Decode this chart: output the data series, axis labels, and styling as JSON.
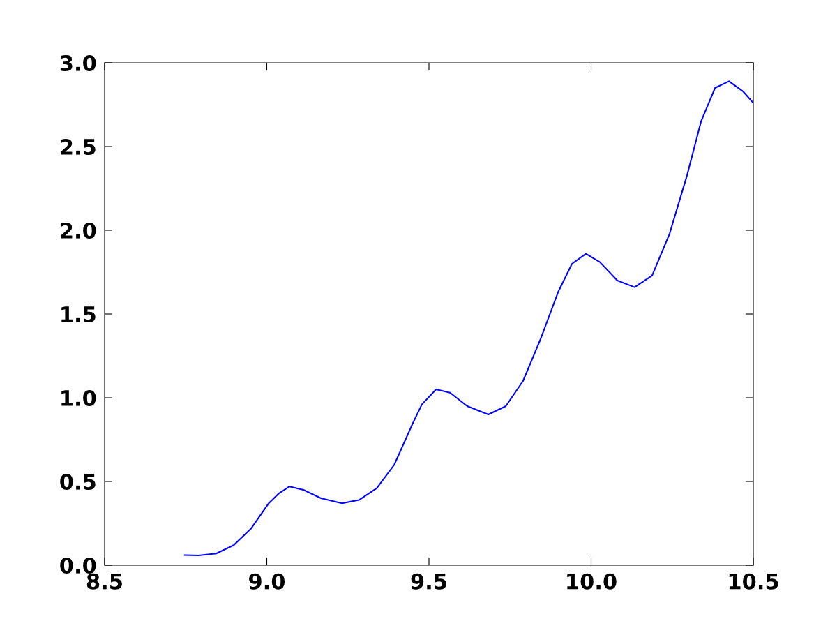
{
  "chart_data": {
    "type": "line",
    "x": [
      8.747,
      8.79,
      8.844,
      8.898,
      8.952,
      9.006,
      9.038,
      9.07,
      9.113,
      9.167,
      9.232,
      9.285,
      9.339,
      9.393,
      9.446,
      9.478,
      9.522,
      9.565,
      9.618,
      9.683,
      9.737,
      9.79,
      9.844,
      9.898,
      9.941,
      9.984,
      10.027,
      10.081,
      10.134,
      10.188,
      10.242,
      10.296,
      10.339,
      10.382,
      10.425,
      10.468,
      10.5
    ],
    "series": [
      {
        "color": "#0000ff",
        "values": [
          0.06,
          0.058,
          0.07,
          0.12,
          0.22,
          0.37,
          0.43,
          0.47,
          0.45,
          0.4,
          0.37,
          0.39,
          0.46,
          0.6,
          0.83,
          0.96,
          1.05,
          1.03,
          0.95,
          0.9,
          0.95,
          1.1,
          1.35,
          1.63,
          1.8,
          1.86,
          1.81,
          1.7,
          1.66,
          1.73,
          1.98,
          2.33,
          2.65,
          2.85,
          2.89,
          2.83,
          2.76
        ]
      }
    ],
    "xlim": [
      8.5,
      10.5
    ],
    "xticks": [
      8.5,
      {
        "value": 9,
        "label": "9.0"
      },
      9.5,
      {
        "value": 10,
        "label": "10.0"
      },
      10.5
    ],
    "ylim": [
      0,
      3
    ],
    "yticks": [
      {
        "value": 0,
        "label": "0.0"
      },
      0.5,
      {
        "value": 1,
        "label": "1.0"
      },
      1.5,
      {
        "value": 2,
        "label": "2.0"
      },
      2.5,
      {
        "value": 3,
        "label": "3.0"
      }
    ]
  }
}
